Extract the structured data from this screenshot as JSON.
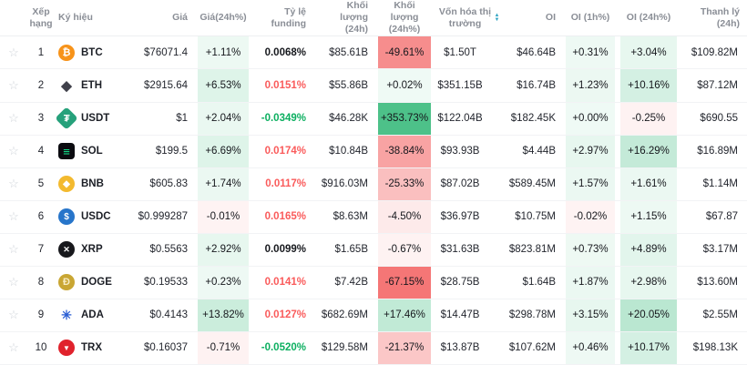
{
  "ui": {
    "star_glyph": "☆"
  },
  "colors": {
    "green_base": "#20b26c",
    "green_rgb": "32,178,108",
    "red_base": "#f25454",
    "red_rgb": "242,84,84",
    "funding_red": "#fa5b5b",
    "funding_green": "#0caf60",
    "header_text": "#8a8e96",
    "text": "#23262e",
    "sort_icon": "#33a6c4",
    "star": "#ced3d9",
    "row_border": "#f2f3f5"
  },
  "table": {
    "columns": [
      {
        "key": "fav",
        "label": "",
        "align": "center"
      },
      {
        "key": "rank",
        "label": "Xếp hạng",
        "align": "center"
      },
      {
        "key": "symbol",
        "label": "Ký hiệu",
        "align": "left"
      },
      {
        "key": "price",
        "label": "Giá",
        "align": "right"
      },
      {
        "key": "chg24",
        "label": "Giá(24h%)",
        "align": "center",
        "type": "pct"
      },
      {
        "key": "funding",
        "label": "Tỷ lệ funding",
        "align": "right",
        "type": "funding"
      },
      {
        "key": "vol",
        "label": "Khối lượng (24h)",
        "align": "right"
      },
      {
        "key": "vol24",
        "label": "Khối lượng (24h%)",
        "align": "center",
        "type": "pct"
      },
      {
        "key": "mcap",
        "label": "Vốn hóa thị trường",
        "align": "center",
        "sort": true
      },
      {
        "key": "oi",
        "label": "OI",
        "align": "right"
      },
      {
        "key": "oi1h",
        "label": "OI (1h%)",
        "align": "center",
        "type": "pct"
      },
      {
        "key": "oi24h",
        "label": "OI (24h%)",
        "align": "center",
        "type": "pct"
      },
      {
        "key": "liq",
        "label": "Thanh lý (24h)",
        "align": "right"
      }
    ],
    "rows": [
      {
        "rank": "1",
        "symbol": "BTC",
        "icon": {
          "bg": "#f7931a",
          "fg": "#ffffff",
          "glyph": "₿"
        },
        "price": "$76071.4",
        "chg24": "+1.11%",
        "chg24_v": 1.11,
        "funding": "0.0068%",
        "funding_tone": "neutral",
        "vol": "$85.61B",
        "vol24": "-49.61%",
        "vol24_v": -49.61,
        "mcap": "$1.50T",
        "oi": "$46.64B",
        "oi1h": "+0.31%",
        "oi1h_v": 0.31,
        "oi24h": "+3.04%",
        "oi24h_v": 3.04,
        "liq": "$109.82M"
      },
      {
        "rank": "2",
        "symbol": "ETH",
        "icon": {
          "bg": "transparent",
          "fg": "#40414b",
          "glyph": "◆",
          "fs": 15
        },
        "price": "$2915.64",
        "chg24": "+6.53%",
        "chg24_v": 6.53,
        "funding": "0.0151%",
        "funding_tone": "red",
        "vol": "$55.86B",
        "vol24": "+0.02%",
        "vol24_v": 0.02,
        "mcap": "$351.15B",
        "oi": "$16.74B",
        "oi1h": "+1.23%",
        "oi1h_v": 1.23,
        "oi24h": "+10.16%",
        "oi24h_v": 10.16,
        "liq": "$87.12M"
      },
      {
        "rank": "3",
        "symbol": "USDT",
        "icon": {
          "bg": "#26a17b",
          "fg": "#ffffff",
          "glyph": "₮",
          "shape": "diamond"
        },
        "price": "$1",
        "chg24": "+2.04%",
        "chg24_v": 2.04,
        "funding": "-0.0349%",
        "funding_tone": "green",
        "vol": "$46.28K",
        "vol24": "+353.73%",
        "vol24_v": 353.73,
        "mcap": "$122.04B",
        "oi": "$182.45K",
        "oi1h": "+0.00%",
        "oi1h_v": 0.001,
        "oi24h": "-0.25%",
        "oi24h_v": -0.25,
        "liq": "$690.55"
      },
      {
        "rank": "4",
        "symbol": "SOL",
        "icon": {
          "bg": "#0b0b10",
          "fg": "#14f195",
          "glyph": "≡",
          "shape": "rsquare",
          "fs": 13
        },
        "price": "$199.5",
        "chg24": "+6.69%",
        "chg24_v": 6.69,
        "funding": "0.0174%",
        "funding_tone": "red",
        "vol": "$10.84B",
        "vol24": "-38.84%",
        "vol24_v": -38.84,
        "mcap": "$93.93B",
        "oi": "$4.44B",
        "oi1h": "+2.97%",
        "oi1h_v": 2.97,
        "oi24h": "+16.29%",
        "oi24h_v": 16.29,
        "liq": "$16.89M"
      },
      {
        "rank": "5",
        "symbol": "BNB",
        "icon": {
          "bg": "#f3ba2f",
          "fg": "#ffffff",
          "glyph": "◆",
          "fs": 10
        },
        "price": "$605.83",
        "chg24": "+1.74%",
        "chg24_v": 1.74,
        "funding": "0.0117%",
        "funding_tone": "red",
        "vol": "$916.03M",
        "vol24": "-25.33%",
        "vol24_v": -25.33,
        "mcap": "$87.02B",
        "oi": "$589.45M",
        "oi1h": "+1.57%",
        "oi1h_v": 1.57,
        "oi24h": "+1.61%",
        "oi24h_v": 1.61,
        "liq": "$1.14M"
      },
      {
        "rank": "6",
        "symbol": "USDC",
        "icon": {
          "bg": "#2775ca",
          "fg": "#ffffff",
          "glyph": "$",
          "fs": 10
        },
        "price": "$0.999287",
        "chg24": "-0.01%",
        "chg24_v": -0.01,
        "funding": "0.0165%",
        "funding_tone": "red",
        "vol": "$8.63M",
        "vol24": "-4.50%",
        "vol24_v": -4.5,
        "mcap": "$36.97B",
        "oi": "$10.75M",
        "oi1h": "-0.02%",
        "oi1h_v": -0.02,
        "oi24h": "+1.15%",
        "oi24h_v": 1.15,
        "liq": "$67.87"
      },
      {
        "rank": "7",
        "symbol": "XRP",
        "icon": {
          "bg": "#17181c",
          "fg": "#ffffff",
          "glyph": "✕",
          "fs": 9
        },
        "price": "$0.5563",
        "chg24": "+2.92%",
        "chg24_v": 2.92,
        "funding": "0.0099%",
        "funding_tone": "neutral",
        "vol": "$1.65B",
        "vol24": "-0.67%",
        "vol24_v": -0.67,
        "mcap": "$31.63B",
        "oi": "$823.81M",
        "oi1h": "+0.73%",
        "oi1h_v": 0.73,
        "oi24h": "+4.89%",
        "oi24h_v": 4.89,
        "liq": "$3.17M"
      },
      {
        "rank": "8",
        "symbol": "DOGE",
        "icon": {
          "bg": "#c9a633",
          "fg": "#f7ecc4",
          "glyph": "Ð"
        },
        "price": "$0.19533",
        "chg24": "+0.23%",
        "chg24_v": 0.23,
        "funding": "0.0141%",
        "funding_tone": "red",
        "vol": "$7.42B",
        "vol24": "-67.15%",
        "vol24_v": -67.15,
        "mcap": "$28.75B",
        "oi": "$1.64B",
        "oi1h": "+1.87%",
        "oi1h_v": 1.87,
        "oi24h": "+2.98%",
        "oi24h_v": 2.98,
        "liq": "$13.60M"
      },
      {
        "rank": "9",
        "symbol": "ADA",
        "icon": {
          "bg": "transparent",
          "fg": "#2a5ed3",
          "glyph": "✳",
          "fs": 14
        },
        "price": "$0.4143",
        "chg24": "+13.82%",
        "chg24_v": 13.82,
        "funding": "0.0127%",
        "funding_tone": "red",
        "vol": "$682.69M",
        "vol24": "+17.46%",
        "vol24_v": 17.46,
        "mcap": "$14.47B",
        "oi": "$298.78M",
        "oi1h": "+3.15%",
        "oi1h_v": 3.15,
        "oi24h": "+20.05%",
        "oi24h_v": 20.05,
        "liq": "$2.55M"
      },
      {
        "rank": "10",
        "symbol": "TRX",
        "icon": {
          "bg": "#e0222c",
          "fg": "#ffffff",
          "glyph": "▼",
          "fs": 8
        },
        "price": "$0.16037",
        "chg24": "-0.71%",
        "chg24_v": -0.71,
        "funding": "-0.0520%",
        "funding_tone": "green",
        "vol": "$129.58M",
        "vol24": "-21.37%",
        "vol24_v": -21.37,
        "mcap": "$13.87B",
        "oi": "$107.62M",
        "oi1h": "+0.46%",
        "oi1h_v": 0.46,
        "oi24h": "+10.17%",
        "oi24h_v": 10.17,
        "liq": "$198.13K"
      }
    ]
  }
}
